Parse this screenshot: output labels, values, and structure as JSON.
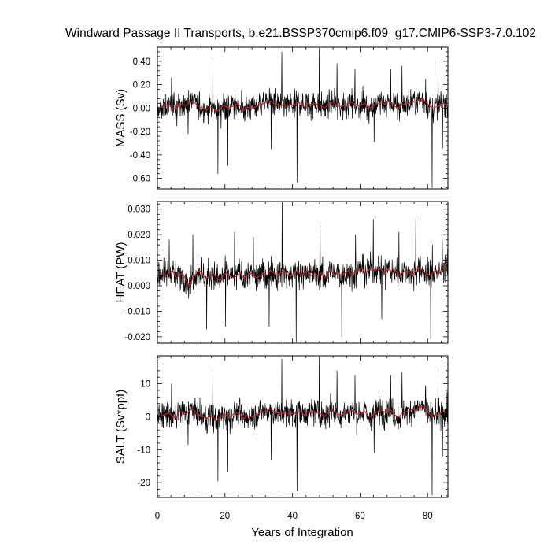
{
  "chart_data": {
    "type": "line",
    "title": "Windward Passage II Transports, b.e21.BSSP370cmip6.f09_g17.CMIP6-SSP3-7.0.102",
    "xlabel": "Years of Integration",
    "xlim": [
      0,
      86
    ],
    "x_ticks": [
      "0",
      "20",
      "40",
      "60",
      "80"
    ],
    "grid": false,
    "legend": "none",
    "series_colors": {
      "monthly": "#000000",
      "annual_mean": "#e02020"
    },
    "panels": [
      {
        "ylabel": "MASS (Sv)",
        "ylim": [
          -0.69,
          0.52
        ],
        "y_ticks": [
          "0.40",
          "0.20",
          "0.00",
          "-0.20",
          "-0.40",
          "-0.60"
        ],
        "monthly_mean_level": 0.02,
        "monthly_spread": 0.08,
        "annual_mean": [
          0.0,
          0.01,
          0.02,
          0.03,
          0.0,
          -0.01,
          0.04,
          0.03,
          0.02,
          0.05,
          0.06,
          0.03,
          0.01,
          0.0,
          -0.02,
          0.01,
          0.0,
          -0.03,
          -0.01,
          0.02,
          0.01,
          0.0,
          0.02,
          0.03,
          0.02,
          -0.02,
          0.01,
          0.0,
          0.0,
          0.02,
          0.03,
          0.04,
          0.05,
          0.06,
          0.04,
          0.03,
          0.02,
          0.03,
          0.02,
          0.03,
          0.02,
          0.05,
          0.04,
          0.01,
          0.04,
          0.03,
          0.04,
          0.03,
          0.02,
          0.0,
          0.03,
          0.05,
          0.04,
          0.02,
          0.01,
          0.03,
          0.04,
          0.05,
          0.03,
          0.02,
          0.03,
          0.04,
          0.0,
          0.01,
          0.03,
          0.04,
          0.05,
          0.03,
          0.06,
          0.04,
          0.01,
          0.0,
          0.03,
          0.04,
          0.04,
          0.06,
          0.05,
          0.07,
          0.08,
          0.05,
          0.02,
          0.0,
          0.01,
          0.02,
          0.04,
          0.03
        ],
        "spikes": [
          [
            4.2,
            0.26
          ],
          [
            9.1,
            -0.22
          ],
          [
            16.4,
            0.4
          ],
          [
            17.9,
            -0.56
          ],
          [
            20.8,
            -0.49
          ],
          [
            33.7,
            -0.35
          ],
          [
            36.8,
            0.48
          ],
          [
            41.3,
            -0.63
          ],
          [
            47.9,
            0.5
          ],
          [
            53.2,
            0.38
          ],
          [
            58.5,
            0.33
          ],
          [
            64.2,
            -0.29
          ],
          [
            69.1,
            0.33
          ],
          [
            72.4,
            0.36
          ],
          [
            79.4,
            0.25
          ],
          [
            81.3,
            -0.68
          ],
          [
            83.1,
            0.42
          ],
          [
            84.4,
            -0.34
          ]
        ]
      },
      {
        "ylabel": "HEAT (PW)",
        "ylim": [
          -0.0225,
          0.033
        ],
        "y_ticks": [
          "0.030",
          "0.020",
          "0.010",
          "0.000",
          "-0.010",
          "-0.020"
        ],
        "monthly_mean_level": 0.0045,
        "monthly_spread": 0.0038,
        "annual_mean": [
          0.004,
          0.005,
          0.004,
          0.005,
          0.006,
          0.003,
          0.004,
          0.005,
          0.002,
          0.0,
          0.003,
          0.005,
          0.006,
          0.004,
          0.003,
          0.004,
          0.005,
          0.003,
          0.002,
          0.004,
          0.005,
          0.004,
          0.003,
          0.004,
          0.005,
          0.003,
          0.004,
          0.005,
          0.004,
          0.003,
          0.004,
          0.005,
          0.004,
          0.006,
          0.005,
          0.004,
          0.005,
          0.006,
          0.004,
          0.004,
          0.005,
          0.006,
          0.004,
          0.005,
          0.006,
          0.004,
          0.005,
          0.004,
          0.005,
          0.003,
          0.005,
          0.006,
          0.004,
          0.005,
          0.004,
          0.005,
          0.006,
          0.004,
          0.005,
          0.006,
          0.007,
          0.005,
          0.006,
          0.007,
          0.006,
          0.007,
          0.006,
          0.005,
          0.007,
          0.005,
          0.006,
          0.004,
          0.005,
          0.006,
          0.005,
          0.004,
          0.006,
          0.007,
          0.006,
          0.005,
          0.004,
          0.005,
          0.006,
          0.005,
          0.007,
          0.008
        ],
        "spikes": [
          [
            3.5,
            0.018
          ],
          [
            10.5,
            0.02
          ],
          [
            14.6,
            -0.017
          ],
          [
            20.2,
            -0.016
          ],
          [
            22.8,
            0.021
          ],
          [
            28.4,
            0.019
          ],
          [
            33.1,
            -0.016
          ],
          [
            36.9,
            0.033
          ],
          [
            41.1,
            -0.022
          ],
          [
            48.2,
            0.025
          ],
          [
            54.6,
            -0.02
          ],
          [
            58.7,
            0.02
          ],
          [
            63.9,
            0.026
          ],
          [
            66.4,
            -0.013
          ],
          [
            71.5,
            0.021
          ],
          [
            76.5,
            0.026
          ],
          [
            80.9,
            -0.021
          ],
          [
            84.3,
            0.018
          ],
          [
            81.4,
            0.016
          ]
        ]
      },
      {
        "ylabel": "SALT (Sv*ppt)",
        "ylim": [
          -24.5,
          18.5
        ],
        "y_ticks": [
          "10",
          "0",
          "-10",
          "-20"
        ],
        "monthly_mean_level": 0.8,
        "monthly_spread": 2.8,
        "annual_mean": [
          0.0,
          0.4,
          0.8,
          1.2,
          0.0,
          -0.4,
          1.6,
          1.2,
          0.8,
          2.0,
          2.4,
          1.2,
          0.4,
          0.0,
          -0.8,
          0.4,
          0.0,
          -1.2,
          -0.4,
          0.8,
          0.4,
          0.0,
          0.8,
          1.2,
          0.8,
          -0.8,
          0.4,
          0.0,
          0.0,
          0.8,
          1.2,
          1.6,
          2.0,
          2.4,
          1.6,
          1.2,
          0.8,
          1.2,
          0.8,
          1.2,
          0.8,
          2.0,
          1.6,
          0.4,
          1.6,
          1.2,
          1.6,
          1.2,
          0.8,
          0.0,
          1.2,
          2.0,
          1.6,
          0.8,
          0.4,
          1.2,
          1.6,
          2.0,
          1.2,
          0.8,
          1.2,
          1.6,
          0.0,
          0.4,
          1.2,
          1.6,
          2.0,
          1.2,
          2.4,
          1.6,
          0.4,
          0.0,
          1.2,
          1.6,
          1.6,
          2.4,
          2.0,
          2.8,
          3.2,
          2.0,
          0.8,
          0.0,
          0.4,
          0.8,
          1.6,
          1.2
        ],
        "spikes": [
          [
            4.2,
            10.0
          ],
          [
            9.1,
            -8.5
          ],
          [
            16.4,
            15.5
          ],
          [
            17.9,
            -19.5
          ],
          [
            20.8,
            -16.8
          ],
          [
            33.7,
            -13.0
          ],
          [
            36.8,
            17.5
          ],
          [
            41.3,
            -22.5
          ],
          [
            47.9,
            18.0
          ],
          [
            53.2,
            14.0
          ],
          [
            58.5,
            12.5
          ],
          [
            64.2,
            -11.0
          ],
          [
            69.1,
            12.5
          ],
          [
            72.4,
            13.5
          ],
          [
            79.4,
            9.5
          ],
          [
            81.3,
            -23.8
          ],
          [
            83.1,
            15.5
          ],
          [
            84.4,
            -12.0
          ]
        ]
      }
    ]
  }
}
